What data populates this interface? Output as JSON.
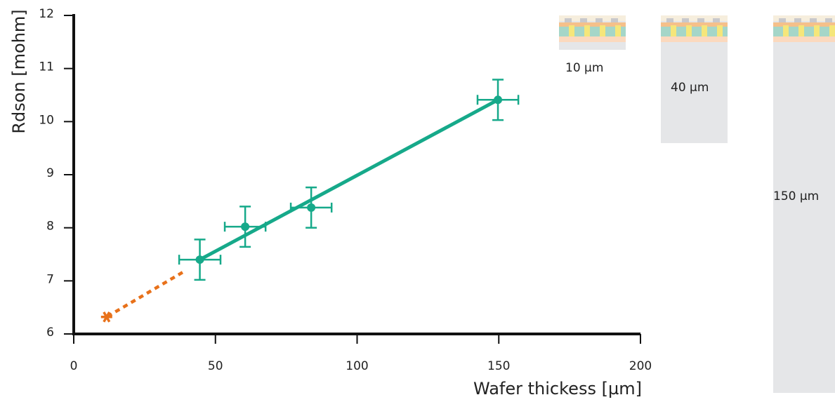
{
  "chart_data": {
    "type": "scatter",
    "x_label": "Wafer thickess [µm]",
    "y_label": "Rdson [mohm]",
    "xlim": [
      0,
      200
    ],
    "ylim": [
      6,
      12
    ],
    "xticks": [
      0,
      50,
      100,
      150,
      200
    ],
    "yticks": [
      6,
      7,
      8,
      9,
      10,
      11,
      12
    ],
    "series": [
      {
        "color": "#16a98a",
        "marker": "circle",
        "x": [
          44.5,
          60.5,
          83.8,
          149.7
        ],
        "values": [
          7.4,
          8.02,
          8.38,
          10.41
        ],
        "xerr": [
          7.3,
          7.2,
          7.2,
          7.2
        ],
        "yerr": [
          0.38,
          0.38,
          0.38,
          0.38
        ]
      },
      {
        "color": "#16a98a",
        "line": "solid",
        "x": [
          44.5,
          149.7
        ],
        "values": [
          7.4,
          10.41
        ]
      },
      {
        "color": "#e8711a",
        "line": "dashed",
        "x": [
          38.4,
          11.6
        ],
        "values": [
          7.16,
          6.32
        ]
      },
      {
        "color": "#e8711a",
        "marker": "asterisk",
        "x": [
          11.6
        ],
        "values": [
          6.32
        ]
      }
    ],
    "annotations": [
      "10 µm",
      "40 µm",
      "150 µm"
    ]
  }
}
